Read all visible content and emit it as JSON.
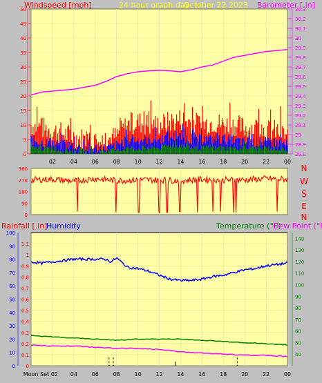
{
  "header": {
    "left_label": "Windspeed [mph]",
    "center_label": "24 hour graph day",
    "date": "October 22 2023",
    "right_label": "Barometer [.in]"
  },
  "bottom_header": {
    "rain_label": "Rainfall [.in]",
    "humidity_label": "Humidity",
    "temp_label": "Temperature (°F)",
    "dew_label": "Dew Point (°F)"
  },
  "x_ticks": [
    "02",
    "04",
    "06",
    "08",
    "10",
    "12",
    "14",
    "16",
    "18",
    "20",
    "22",
    "00"
  ],
  "bottom_first_tick": "Moon Set 02",
  "colors": {
    "background": "#c0c0c0",
    "plot_bg": "#ffffa8",
    "wind_gust": "#ff0000",
    "wind_avg": "#0000ff",
    "wind_min": "#008000",
    "barometer": "#ff00ff",
    "humidity": "#0000ff",
    "temperature": "#008000",
    "dew_point": "#ff00ff",
    "direction": "#ff0000",
    "title": "#ffff00"
  },
  "chart_data": [
    {
      "type": "line",
      "name": "wind-barometer",
      "y_left_ticks": [
        "0",
        "5",
        "10",
        "15",
        "20",
        "25",
        "30",
        "35",
        "40",
        "45",
        "50"
      ],
      "ylim_left": [
        0,
        50
      ],
      "y_right_ticks": [
        "28.8",
        "28.9",
        "29",
        "29.1",
        "29.2",
        "29.3",
        "29.4",
        "29.5",
        "29.6",
        "29.7",
        "29.8",
        "29.9",
        "30",
        "30.1",
        "30.2",
        "30.3"
      ],
      "ylim_right": [
        28.8,
        30.3
      ],
      "series": [
        {
          "name": "Barometer [.in]",
          "x": [
            0,
            1,
            2,
            3,
            4,
            5,
            6,
            7,
            8,
            9,
            10,
            11,
            12,
            13,
            14,
            15,
            16,
            17,
            18,
            19,
            20,
            21,
            22,
            23,
            24
          ],
          "values": [
            29.41,
            29.44,
            29.45,
            29.46,
            29.47,
            29.49,
            29.51,
            29.55,
            29.6,
            29.63,
            29.65,
            29.66,
            29.665,
            29.66,
            29.65,
            29.67,
            29.7,
            29.72,
            29.76,
            29.8,
            29.82,
            29.84,
            29.86,
            29.87,
            29.88
          ]
        },
        {
          "name": "Gust",
          "x": [
            0,
            1,
            2,
            3,
            4,
            5,
            6,
            7,
            8,
            9,
            10,
            11,
            12,
            13,
            14,
            15,
            16,
            17,
            18,
            19,
            20,
            21,
            22,
            23,
            24
          ],
          "values": [
            10,
            9,
            8,
            7,
            6,
            5,
            4,
            5,
            6,
            10,
            11,
            10,
            10,
            11,
            12,
            11,
            10,
            11,
            10,
            10,
            9,
            9,
            8,
            8,
            6
          ]
        },
        {
          "name": "Average",
          "x": [
            0,
            1,
            2,
            3,
            4,
            5,
            6,
            7,
            8,
            9,
            10,
            11,
            12,
            13,
            14,
            15,
            16,
            17,
            18,
            19,
            20,
            21,
            22,
            23,
            24
          ],
          "values": [
            5,
            4,
            4,
            3,
            3,
            2,
            2,
            2,
            3,
            5,
            5,
            5,
            5,
            6,
            6,
            5,
            5,
            5,
            5,
            5,
            4,
            4,
            4,
            4,
            3
          ]
        },
        {
          "name": "Minimum",
          "x": [
            0,
            1,
            2,
            3,
            4,
            5,
            6,
            7,
            8,
            9,
            10,
            11,
            12,
            13,
            14,
            15,
            16,
            17,
            18,
            19,
            20,
            21,
            22,
            23,
            24
          ],
          "values": [
            2,
            2,
            2,
            1,
            1,
            1,
            0,
            1,
            1,
            2,
            2,
            2,
            2,
            3,
            3,
            2,
            2,
            2,
            2,
            2,
            2,
            2,
            2,
            2,
            1
          ]
        }
      ]
    },
    {
      "type": "scatter",
      "name": "wind-direction",
      "y_left_ticks": [
        "0",
        "90",
        "180",
        "270",
        "360"
      ],
      "ylim": [
        0,
        360
      ],
      "y_right_labels": [
        "N",
        "W",
        "S",
        "E",
        "N"
      ],
      "series": [
        {
          "name": "Direction",
          "x": [
            0,
            2,
            4,
            6,
            8,
            10,
            12,
            14,
            16,
            18,
            20,
            22,
            24
          ],
          "values": [
            270,
            275,
            260,
            280,
            265,
            270,
            270,
            265,
            275,
            270,
            270,
            280,
            275
          ]
        }
      ]
    },
    {
      "type": "line",
      "name": "rain-humidity-temp",
      "y_rain_ticks": [
        "0",
        "0.1",
        "0.2",
        "0.3",
        "0.4",
        "0.5",
        "0.6",
        "0.7",
        "0.8",
        "0.9",
        "1",
        "1.1"
      ],
      "ylim_rain": [
        0,
        1.2
      ],
      "y_humidity_ticks": [
        "0",
        "10",
        "20",
        "30",
        "40",
        "50",
        "60",
        "70",
        "80",
        "90",
        "100"
      ],
      "ylim_humidity": [
        0,
        100
      ],
      "y_temp_ticks": [
        "40",
        "50",
        "60",
        "70",
        "80",
        "90",
        "100",
        "110",
        "120",
        "130",
        "140"
      ],
      "ylim_temp": [
        30,
        145
      ],
      "series": [
        {
          "name": "Humidity",
          "x": [
            0,
            1,
            2,
            3,
            4,
            5,
            6,
            7,
            7.5,
            8,
            9,
            10,
            11,
            12,
            13,
            14,
            15,
            16,
            17,
            18,
            19,
            20,
            21,
            22,
            23,
            24
          ],
          "values": [
            78,
            77,
            78,
            79,
            80,
            80,
            80,
            80,
            78,
            81,
            74,
            73,
            71,
            68,
            65,
            64,
            64,
            65,
            67,
            68,
            70,
            72,
            73,
            75,
            76,
            77
          ]
        },
        {
          "name": "Temperature (°F)",
          "x": [
            0,
            2,
            4,
            6,
            8,
            10,
            12,
            14,
            16,
            18,
            20,
            22,
            24
          ],
          "values": [
            56,
            55,
            54,
            53,
            52,
            53,
            53,
            53,
            52,
            51,
            50,
            49,
            48
          ]
        },
        {
          "name": "Dew Point (°F)",
          "x": [
            0,
            2,
            4,
            6,
            8,
            10,
            12,
            14,
            16,
            18,
            20,
            22,
            24
          ],
          "values": [
            48,
            47,
            47,
            46,
            45,
            45,
            44,
            42,
            41,
            40,
            39,
            39,
            38
          ]
        }
      ]
    }
  ]
}
